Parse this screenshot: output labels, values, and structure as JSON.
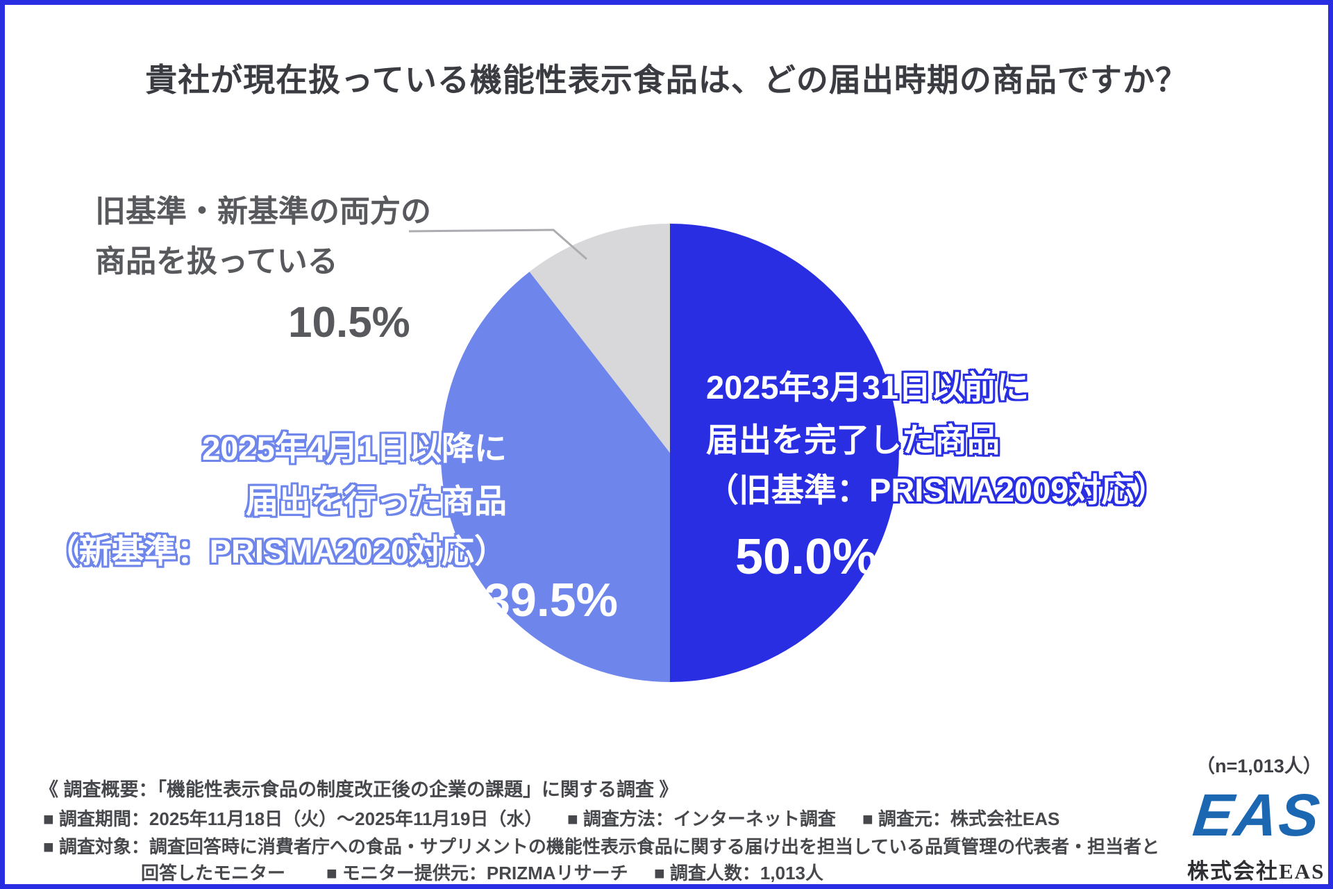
{
  "title": "貴社が現在扱っている機能性表示食品は、どの届出時期の商品ですか？",
  "chart_data": {
    "type": "pie",
    "title": "貴社が現在扱っている機能性表示食品は、どの届出時期の商品ですか？",
    "start_angle_deg": -90,
    "direction": "clockwise",
    "sample_size_note": "（n=1,013人）",
    "slices": [
      {
        "name": "2025年3月31日以前に届出を完了した商品（旧基準：PRISMA2009対応）",
        "label_line1": "2025年3月31日以前に",
        "label_line2": "届出を完了した商品",
        "label_line3": "（旧基準：PRISMA2009対応）",
        "value": 50.0,
        "value_label": "50.0%",
        "color": "#2a2ee2",
        "label_text_color": "#ffffff"
      },
      {
        "name": "2025年4月1日以降に届出を行った商品（新基準：PRISMA2020対応）",
        "label_line1": "2025年4月1日以降に",
        "label_line2": "届出を行った商品",
        "label_line3": "（新基準：PRISMA2020対応）",
        "value": 39.5,
        "value_label": "39.5%",
        "color": "#6e85eb",
        "label_text_color": "#ffffff"
      },
      {
        "name": "旧基準・新基準の両方の商品を扱っている",
        "label_line1": "旧基準・新基準の両方の",
        "label_line2": "商品を扱っている",
        "value": 10.5,
        "value_label": "10.5%",
        "color": "#d8d8da",
        "label_text_color": "#58595d"
      }
    ]
  },
  "footer": {
    "summary": "《 調査概要：「機能性表示食品の制度改正後の企業の課題」に関する調査 》",
    "period": "■ 調査期間：2025年11月18日（火）～2025年11月19日（水）",
    "method": "■ 調査方法：インターネット調査",
    "source": "■ 調査元：株式会社EAS",
    "target": "■ 調査対象：調査回答時に消費者庁への食品・サプリメントの機能性表示食品に関する届け出を担当している品質管理の代表者・担当者と",
    "target_cont": "回答したモニター",
    "monitor": "■ モニター提供元：PRIZMAリサーチ",
    "respondents": "■ 調査人数：1,013人",
    "n_note": "（n=1,013人）"
  },
  "logo": {
    "text": "EAS",
    "company": "株式会社EAS",
    "color": "#1b67b2"
  },
  "colors": {
    "accent_blue": "#2a2ee2",
    "light_blue": "#6e85eb",
    "gray_slice": "#d8d8da",
    "title_text": "#3b3c42",
    "gray_label_text": "#58595d",
    "footer_text": "#47484c",
    "leader_line": "#abacaf",
    "frame_border": "#2a2ee2"
  }
}
